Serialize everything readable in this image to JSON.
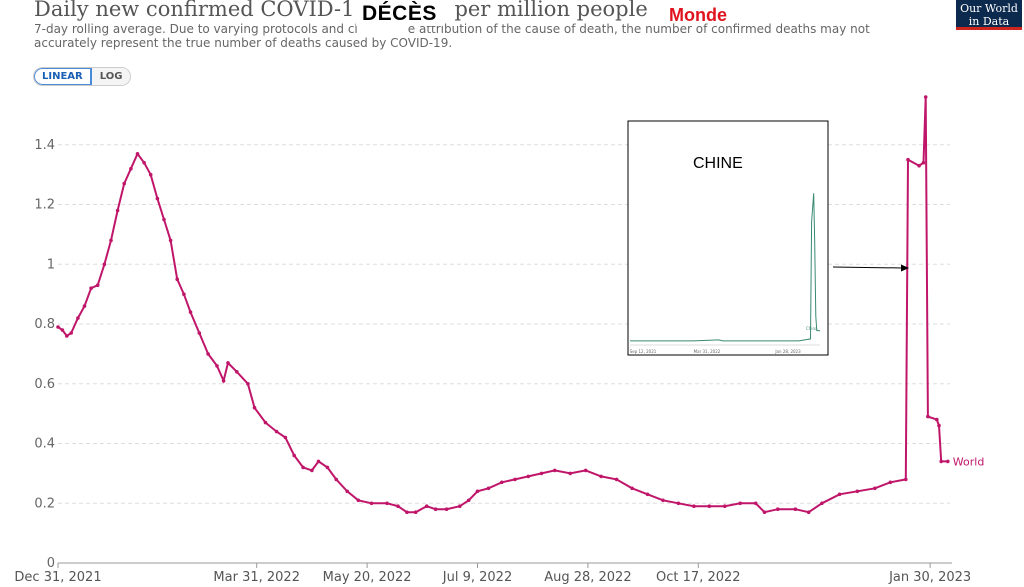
{
  "header": {
    "title": "Daily new confirmed COVID-1",
    "title_end": "per million people",
    "subtitle": "7-day rolling average. Due to varying protocols and cl",
    "subtitle_mid": "e attribution of the cause of death, the number of confirmed deaths may not",
    "subtitle_line2": "accurately represent the true number of deaths caused by COVID-19.",
    "overlay_deces": "DÉCÈS",
    "overlay_monde": "Monde",
    "logo_line1": "Our World",
    "logo_line2": "in Data"
  },
  "toggle": {
    "linear": "LINEAR",
    "log": "LOG"
  },
  "colors": {
    "series": "#c0166a",
    "inset_series": "#3a8a73",
    "grid": "#dddddd"
  },
  "chart_data": {
    "type": "line",
    "series_label": "World",
    "ylim": [
      0,
      1.55
    ],
    "yticks": [
      0,
      0.2,
      0.4,
      0.6,
      0.8,
      1,
      1.2,
      1.4
    ],
    "ytick_labels": [
      "0",
      "0.2",
      "0.4",
      "0.6",
      "0.8",
      "1",
      "1.2",
      "1.4"
    ],
    "xlim": [
      "2021-12-31",
      "2023-02-08"
    ],
    "xticks": [
      "2021-12-31",
      "2022-03-31",
      "2022-05-20",
      "2022-07-09",
      "2022-08-28",
      "2022-10-17",
      "2023-01-30"
    ],
    "xtick_labels": [
      "Dec 31, 2021",
      "Mar 31, 2022",
      "May 20, 2022",
      "Jul 9, 2022",
      "Aug 28, 2022",
      "Oct 17, 2022",
      "Jan 30, 2023"
    ],
    "series": [
      {
        "name": "World",
        "points": [
          [
            "2021-12-31",
            0.79
          ],
          [
            "2022-01-02",
            0.78
          ],
          [
            "2022-01-04",
            0.76
          ],
          [
            "2022-01-06",
            0.77
          ],
          [
            "2022-01-09",
            0.82
          ],
          [
            "2022-01-12",
            0.86
          ],
          [
            "2022-01-15",
            0.92
          ],
          [
            "2022-01-18",
            0.93
          ],
          [
            "2022-01-21",
            1.0
          ],
          [
            "2022-01-24",
            1.08
          ],
          [
            "2022-01-27",
            1.18
          ],
          [
            "2022-01-30",
            1.27
          ],
          [
            "2022-02-02",
            1.32
          ],
          [
            "2022-02-05",
            1.37
          ],
          [
            "2022-02-08",
            1.34
          ],
          [
            "2022-02-11",
            1.3
          ],
          [
            "2022-02-14",
            1.22
          ],
          [
            "2022-02-17",
            1.15
          ],
          [
            "2022-02-20",
            1.08
          ],
          [
            "2022-02-23",
            0.95
          ],
          [
            "2022-02-26",
            0.9
          ],
          [
            "2022-03-01",
            0.84
          ],
          [
            "2022-03-05",
            0.77
          ],
          [
            "2022-03-09",
            0.7
          ],
          [
            "2022-03-13",
            0.66
          ],
          [
            "2022-03-16",
            0.61
          ],
          [
            "2022-03-18",
            0.67
          ],
          [
            "2022-03-22",
            0.64
          ],
          [
            "2022-03-27",
            0.6
          ],
          [
            "2022-03-30",
            0.52
          ],
          [
            "2022-04-04",
            0.47
          ],
          [
            "2022-04-09",
            0.44
          ],
          [
            "2022-04-13",
            0.42
          ],
          [
            "2022-04-17",
            0.36
          ],
          [
            "2022-04-21",
            0.32
          ],
          [
            "2022-04-25",
            0.31
          ],
          [
            "2022-04-28",
            0.34
          ],
          [
            "2022-05-02",
            0.32
          ],
          [
            "2022-05-06",
            0.28
          ],
          [
            "2022-05-11",
            0.24
          ],
          [
            "2022-05-16",
            0.21
          ],
          [
            "2022-05-22",
            0.2
          ],
          [
            "2022-05-29",
            0.2
          ],
          [
            "2022-06-03",
            0.19
          ],
          [
            "2022-06-07",
            0.17
          ],
          [
            "2022-06-11",
            0.17
          ],
          [
            "2022-06-16",
            0.19
          ],
          [
            "2022-06-20",
            0.18
          ],
          [
            "2022-06-25",
            0.18
          ],
          [
            "2022-07-01",
            0.19
          ],
          [
            "2022-07-05",
            0.21
          ],
          [
            "2022-07-09",
            0.24
          ],
          [
            "2022-07-14",
            0.25
          ],
          [
            "2022-07-20",
            0.27
          ],
          [
            "2022-07-26",
            0.28
          ],
          [
            "2022-08-01",
            0.29
          ],
          [
            "2022-08-07",
            0.3
          ],
          [
            "2022-08-13",
            0.31
          ],
          [
            "2022-08-20",
            0.3
          ],
          [
            "2022-08-27",
            0.31
          ],
          [
            "2022-09-03",
            0.29
          ],
          [
            "2022-09-10",
            0.28
          ],
          [
            "2022-09-17",
            0.25
          ],
          [
            "2022-09-24",
            0.23
          ],
          [
            "2022-10-01",
            0.21
          ],
          [
            "2022-10-08",
            0.2
          ],
          [
            "2022-10-15",
            0.19
          ],
          [
            "2022-10-22",
            0.19
          ],
          [
            "2022-10-29",
            0.19
          ],
          [
            "2022-11-05",
            0.2
          ],
          [
            "2022-11-12",
            0.2
          ],
          [
            "2022-11-16",
            0.17
          ],
          [
            "2022-11-22",
            0.18
          ],
          [
            "2022-11-30",
            0.18
          ],
          [
            "2022-12-06",
            0.17
          ],
          [
            "2022-12-12",
            0.2
          ],
          [
            "2022-12-20",
            0.23
          ],
          [
            "2022-12-28",
            0.24
          ],
          [
            "2023-01-05",
            0.25
          ],
          [
            "2023-01-12",
            0.27
          ],
          [
            "2023-01-19",
            0.28
          ],
          [
            "2023-01-20",
            1.35
          ],
          [
            "2023-01-25",
            1.33
          ],
          [
            "2023-01-27",
            1.34
          ],
          [
            "2023-01-28",
            1.56
          ],
          [
            "2023-01-29",
            0.49
          ],
          [
            "2023-02-02",
            0.48
          ],
          [
            "2023-02-03",
            0.46
          ],
          [
            "2023-02-04",
            0.34
          ],
          [
            "2023-02-07",
            0.34
          ]
        ]
      }
    ],
    "inset": {
      "label": "CHINE",
      "series_label": "China",
      "xtick_labels": [
        "Sep 12, 2021",
        "Mar 31, 2022",
        "Jan 28, 2023"
      ],
      "series": [
        [
          0.0,
          0.02
        ],
        [
          0.3,
          0.02
        ],
        [
          0.42,
          0.025
        ],
        [
          0.44,
          0.02
        ],
        [
          0.8,
          0.02
        ],
        [
          0.855,
          0.03
        ],
        [
          0.86,
          0.6
        ],
        [
          0.87,
          0.74
        ],
        [
          0.875,
          0.5
        ],
        [
          0.88,
          0.14
        ],
        [
          0.885,
          0.07
        ],
        [
          0.9,
          0.07
        ]
      ]
    }
  }
}
